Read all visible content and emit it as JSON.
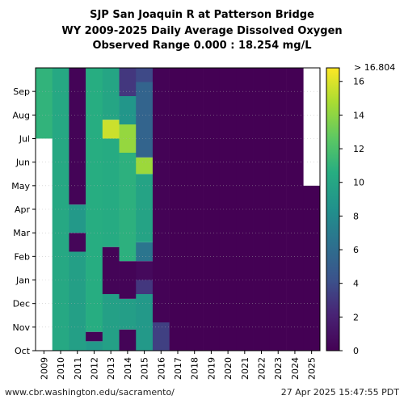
{
  "header": {
    "title": "SJP San Joaquin R at Patterson Bridge",
    "subtitle": "WY 2009-2025 Daily Average Dissolved Oxygen",
    "range_text": "Observed Range 0.000 : 18.254 mg/L"
  },
  "footer": {
    "url": "www.cbr.washington.edu/sacramento/",
    "timestamp": "27 Apr 2025 15:47:55 PDT"
  },
  "chart_data": {
    "type": "heatmap",
    "x_categories": [
      "2009",
      "2010",
      "2011",
      "2012",
      "2013",
      "2014",
      "2015",
      "2016",
      "2017",
      "2018",
      "2019",
      "2020",
      "2021",
      "2022",
      "2023",
      "2024",
      "2025"
    ],
    "y_month_labels": [
      "Oct",
      "Nov",
      "Dec",
      "Jan",
      "Feb",
      "Mar",
      "Apr",
      "May",
      "Jun",
      "Jul",
      "Aug",
      "Sep"
    ],
    "colorbar": {
      "min": 0,
      "max": 16.804,
      "max_label": "> 16.804",
      "ticks": [
        0,
        2,
        4,
        6,
        8,
        10,
        12,
        14,
        16
      ]
    },
    "no_data_color": "#ffffff",
    "segments": [
      {
        "year": "2009",
        "start_month": 9.0,
        "end_month": 12.0,
        "value": 11.0
      },
      {
        "year": "2010",
        "start_month": 0.0,
        "end_month": 12.0,
        "value": 10.2
      },
      {
        "year": "2011",
        "start_month": 0.0,
        "end_month": 4.2,
        "value": 9.5
      },
      {
        "year": "2011",
        "start_month": 4.2,
        "end_month": 5.0,
        "value": 0.3
      },
      {
        "year": "2011",
        "start_month": 5.0,
        "end_month": 6.2,
        "value": 9.0
      },
      {
        "year": "2011",
        "start_month": 6.2,
        "end_month": 12.0,
        "value": 0.2
      },
      {
        "year": "2012",
        "start_month": 0.0,
        "end_month": 0.4,
        "value": 9.0
      },
      {
        "year": "2012",
        "start_month": 0.4,
        "end_month": 0.8,
        "value": 0.2
      },
      {
        "year": "2012",
        "start_month": 0.8,
        "end_month": 12.0,
        "value": 10.6
      },
      {
        "year": "2013",
        "start_month": 0.0,
        "end_month": 2.4,
        "value": 9.6
      },
      {
        "year": "2013",
        "start_month": 2.4,
        "end_month": 4.4,
        "value": 0.2
      },
      {
        "year": "2013",
        "start_month": 4.4,
        "end_month": 9.0,
        "value": 10.4
      },
      {
        "year": "2013",
        "start_month": 9.0,
        "end_month": 9.8,
        "value": 15.6
      },
      {
        "year": "2013",
        "start_month": 9.8,
        "end_month": 12.0,
        "value": 10.0
      },
      {
        "year": "2014",
        "start_month": 0.0,
        "end_month": 0.9,
        "value": 0.2
      },
      {
        "year": "2014",
        "start_month": 0.9,
        "end_month": 2.2,
        "value": 9.4
      },
      {
        "year": "2014",
        "start_month": 2.2,
        "end_month": 3.8,
        "value": 0.2
      },
      {
        "year": "2014",
        "start_month": 3.8,
        "end_month": 8.4,
        "value": 10.8
      },
      {
        "year": "2014",
        "start_month": 8.4,
        "end_month": 9.6,
        "value": 14.2
      },
      {
        "year": "2014",
        "start_month": 9.6,
        "end_month": 10.8,
        "value": 8.8
      },
      {
        "year": "2014",
        "start_month": 10.8,
        "end_month": 12.0,
        "value": 3.0
      },
      {
        "year": "2015",
        "start_month": 0.0,
        "end_month": 2.4,
        "value": 9.0
      },
      {
        "year": "2015",
        "start_month": 2.4,
        "end_month": 3.0,
        "value": 3.0
      },
      {
        "year": "2015",
        "start_month": 3.0,
        "end_month": 3.8,
        "value": 0.5
      },
      {
        "year": "2015",
        "start_month": 3.8,
        "end_month": 4.6,
        "value": 6.6
      },
      {
        "year": "2015",
        "start_month": 4.6,
        "end_month": 7.5,
        "value": 9.8
      },
      {
        "year": "2015",
        "start_month": 7.5,
        "end_month": 8.2,
        "value": 14.4
      },
      {
        "year": "2015",
        "start_month": 8.2,
        "end_month": 11.4,
        "value": 5.4
      },
      {
        "year": "2015",
        "start_month": 11.4,
        "end_month": 12.0,
        "value": 3.8
      },
      {
        "year": "2016",
        "start_month": 0.0,
        "end_month": 1.2,
        "value": 3.4
      },
      {
        "year": "2016",
        "start_month": 1.2,
        "end_month": 12.0,
        "value": 0.1
      },
      {
        "year": "2017",
        "start_month": 0.0,
        "end_month": 12.0,
        "value": 0.0
      },
      {
        "year": "2018",
        "start_month": 0.0,
        "end_month": 12.0,
        "value": 0.0
      },
      {
        "year": "2019",
        "start_month": 0.0,
        "end_month": 12.0,
        "value": 0.0
      },
      {
        "year": "2020",
        "start_month": 0.0,
        "end_month": 12.0,
        "value": 0.0
      },
      {
        "year": "2021",
        "start_month": 0.0,
        "end_month": 12.0,
        "value": 0.0
      },
      {
        "year": "2022",
        "start_month": 0.0,
        "end_month": 12.0,
        "value": 0.0
      },
      {
        "year": "2023",
        "start_month": 0.0,
        "end_month": 12.0,
        "value": 0.0
      },
      {
        "year": "2024",
        "start_month": 0.0,
        "end_month": 12.0,
        "value": 0.0
      },
      {
        "year": "2025",
        "start_month": 0.0,
        "end_month": 7.0,
        "value": 0.0
      }
    ]
  }
}
